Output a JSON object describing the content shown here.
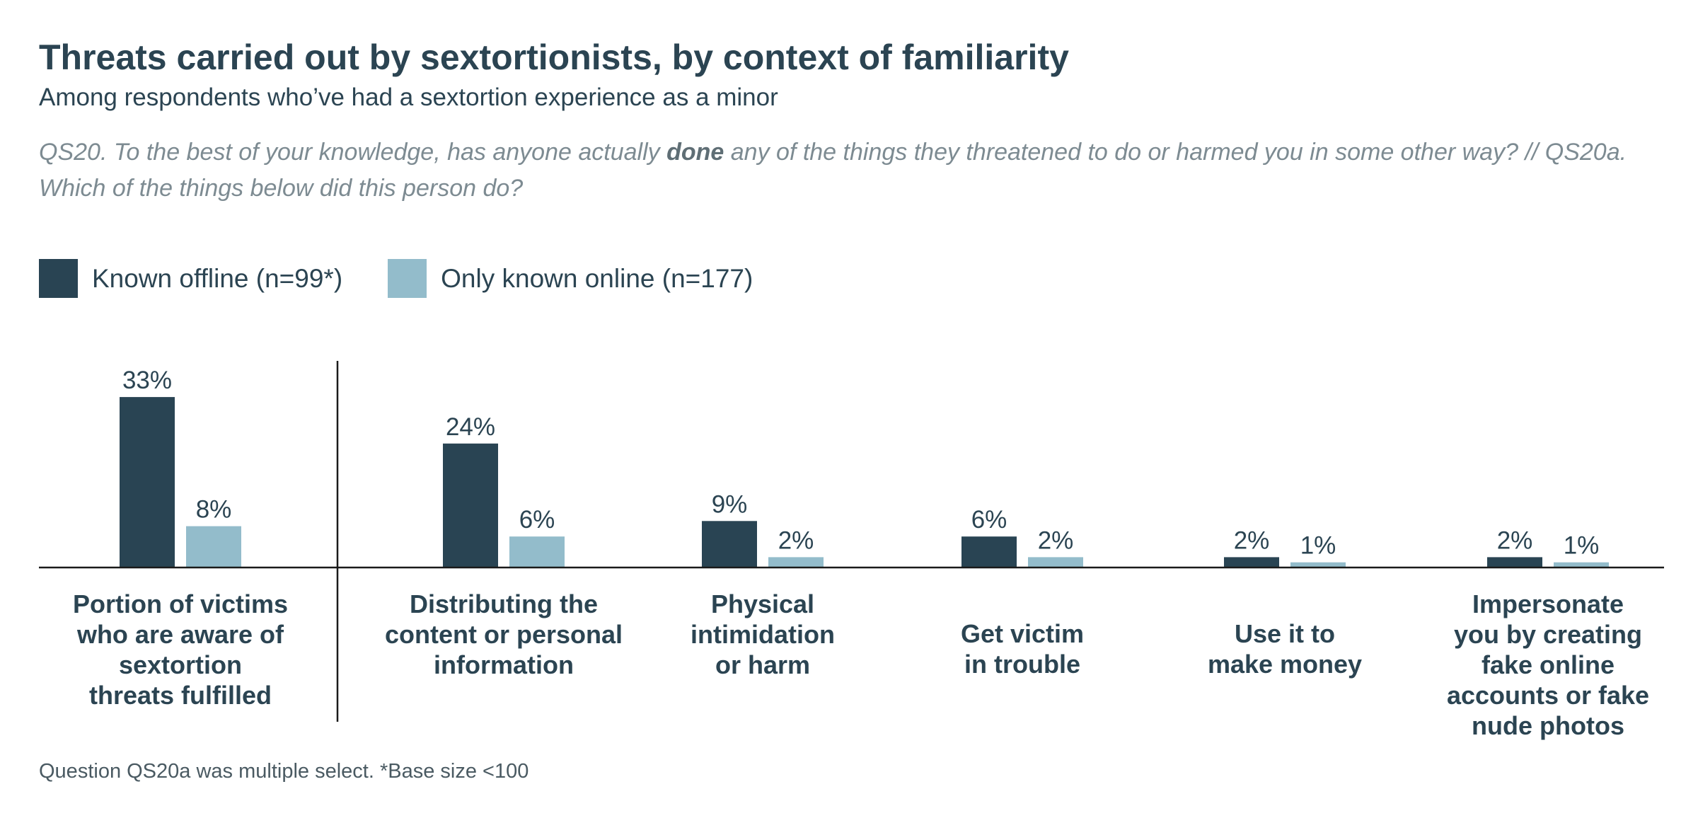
{
  "title": "Threats carried out by sextortionists, by context of familiarity",
  "subtitle": "Among respondents who’ve had a sextortion experience as a minor",
  "question": {
    "part1": "QS20. To the best of your knowledge, has anyone actually ",
    "emphasis": "done",
    "part2": " any of the things they threatened to do or harmed you in some other way? // QS20a. Which of the things below did this person do?"
  },
  "footnote": "Question QS20a was multiple select. *Base size <100",
  "chart_data": {
    "type": "bar",
    "categories": [
      "Portion of victims who are aware of sextortion threats fulfilled",
      "Distributing the content or personal information",
      "Physical intimidation or harm",
      "Get victim in trouble",
      "Use it to make money",
      "Impersonate you by creating fake online accounts or fake nude photos"
    ],
    "category_lines": [
      [
        "Portion of victims",
        "who are aware of",
        "sextortion",
        "threats fulfilled"
      ],
      [
        "Distributing the",
        "content or personal",
        "information"
      ],
      [
        "Physical",
        "intimidation",
        "or harm"
      ],
      [
        "Get victim",
        "in trouble"
      ],
      [
        "Use it to",
        "make money"
      ],
      [
        "Impersonate",
        "you by creating",
        "fake online",
        "accounts or fake",
        "nude photos"
      ]
    ],
    "series": [
      {
        "name": "Known offline (n=99*)",
        "color": "#294453",
        "values": [
          33,
          24,
          9,
          6,
          2,
          2
        ],
        "labels": [
          "33%",
          "24%",
          "9%",
          "6%",
          "2%",
          "2%"
        ]
      },
      {
        "name": "Only known online (n=177)",
        "color": "#93bccb",
        "values": [
          8,
          6,
          2,
          2,
          1,
          1
        ],
        "labels": [
          "8%",
          "6%",
          "2%",
          "2%",
          "1%",
          "1%"
        ]
      }
    ],
    "unit": "%",
    "ylim": [
      0,
      33
    ],
    "grid": false,
    "legend_position": "top-left",
    "separator_after_category": 1
  }
}
